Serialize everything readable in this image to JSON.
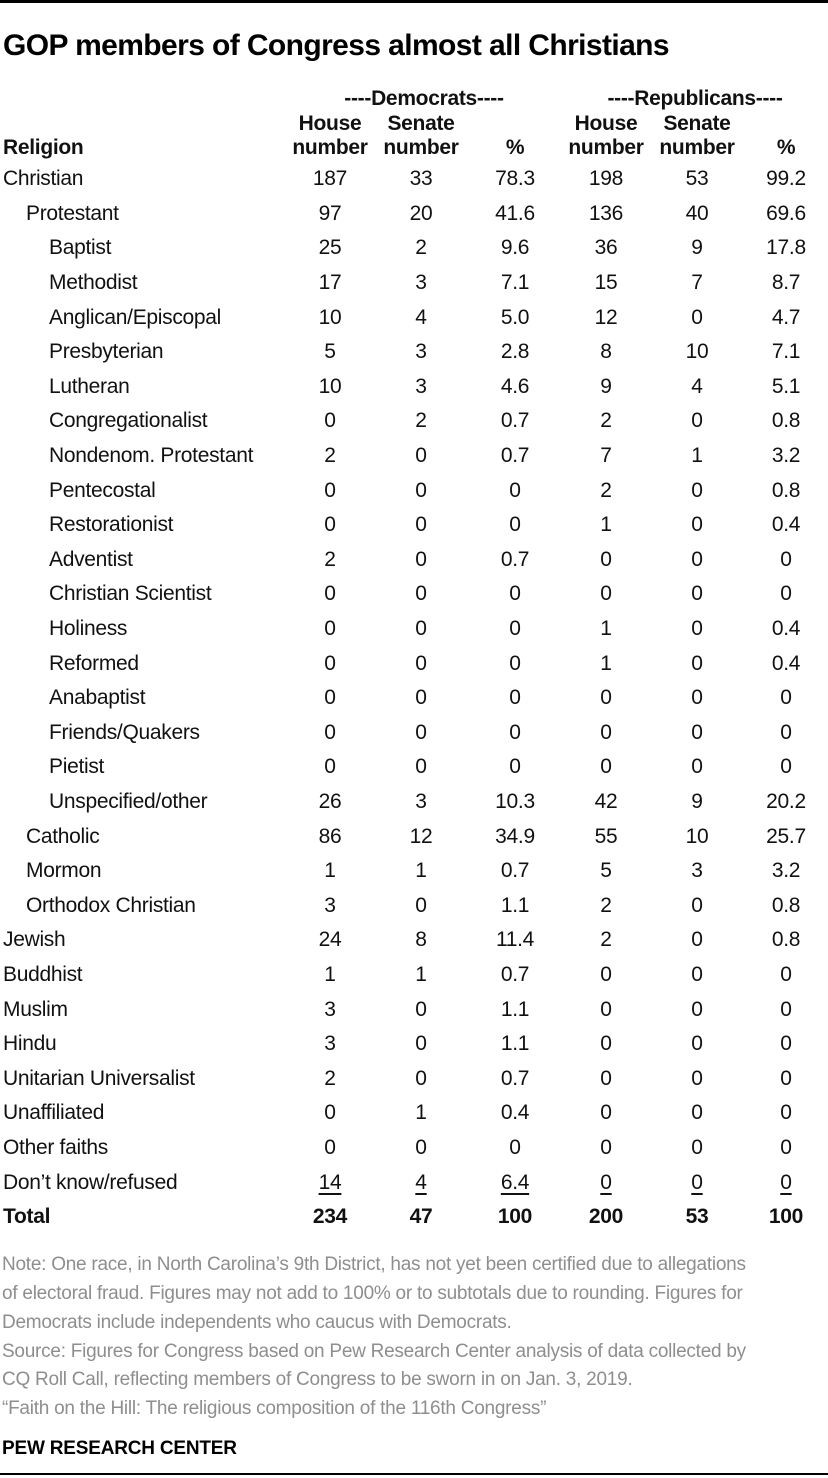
{
  "title": "GOP members of Congress almost all Christians",
  "colors": {
    "rule_black": "#000000",
    "note_gray": "#8e8e8e",
    "text_black": "#111111"
  },
  "chart_data": {
    "type": "table",
    "title": "GOP members of Congress almost all Christians",
    "row_header": "Religion",
    "group_headers": {
      "democrats": "----Democrats----",
      "republicans": "----Republicans----"
    },
    "col_headers": [
      {
        "line1": "House",
        "line2": "number"
      },
      {
        "line1": "Senate",
        "line2": "number"
      },
      {
        "line1": "",
        "line2": "%"
      },
      {
        "line1": "House",
        "line2": "number"
      },
      {
        "line1": "Senate",
        "line2": "number"
      },
      {
        "line1": "",
        "line2": "%"
      }
    ],
    "rows": [
      {
        "label": "Christian",
        "indent": 0,
        "style": "normal",
        "values": [
          "187",
          "33",
          "78.3",
          "198",
          "53",
          "99.2"
        ]
      },
      {
        "label": "Protestant",
        "indent": 1,
        "style": "normal",
        "values": [
          "97",
          "20",
          "41.6",
          "136",
          "40",
          "69.6"
        ]
      },
      {
        "label": "Baptist",
        "indent": 2,
        "style": "normal",
        "values": [
          "25",
          "2",
          "9.6",
          "36",
          "9",
          "17.8"
        ]
      },
      {
        "label": "Methodist",
        "indent": 2,
        "style": "normal",
        "values": [
          "17",
          "3",
          "7.1",
          "15",
          "7",
          "8.7"
        ]
      },
      {
        "label": "Anglican/Episcopal",
        "indent": 2,
        "style": "normal",
        "values": [
          "10",
          "4",
          "5.0",
          "12",
          "0",
          "4.7"
        ]
      },
      {
        "label": "Presbyterian",
        "indent": 2,
        "style": "normal",
        "values": [
          "5",
          "3",
          "2.8",
          "8",
          "10",
          "7.1"
        ]
      },
      {
        "label": "Lutheran",
        "indent": 2,
        "style": "normal",
        "values": [
          "10",
          "3",
          "4.6",
          "9",
          "4",
          "5.1"
        ]
      },
      {
        "label": "Congregationalist",
        "indent": 2,
        "style": "normal",
        "values": [
          "0",
          "2",
          "0.7",
          "2",
          "0",
          "0.8"
        ]
      },
      {
        "label": "Nondenom. Protestant",
        "indent": 2,
        "style": "normal",
        "values": [
          "2",
          "0",
          "0.7",
          "7",
          "1",
          "3.2"
        ]
      },
      {
        "label": "Pentecostal",
        "indent": 2,
        "style": "normal",
        "values": [
          "0",
          "0",
          "0",
          "2",
          "0",
          "0.8"
        ]
      },
      {
        "label": "Restorationist",
        "indent": 2,
        "style": "normal",
        "values": [
          "0",
          "0",
          "0",
          "1",
          "0",
          "0.4"
        ]
      },
      {
        "label": "Adventist",
        "indent": 2,
        "style": "normal",
        "values": [
          "2",
          "0",
          "0.7",
          "0",
          "0",
          "0"
        ]
      },
      {
        "label": "Christian Scientist",
        "indent": 2,
        "style": "normal",
        "values": [
          "0",
          "0",
          "0",
          "0",
          "0",
          "0"
        ]
      },
      {
        "label": "Holiness",
        "indent": 2,
        "style": "normal",
        "values": [
          "0",
          "0",
          "0",
          "1",
          "0",
          "0.4"
        ]
      },
      {
        "label": "Reformed",
        "indent": 2,
        "style": "normal",
        "values": [
          "0",
          "0",
          "0",
          "1",
          "0",
          "0.4"
        ]
      },
      {
        "label": "Anabaptist",
        "indent": 2,
        "style": "normal",
        "values": [
          "0",
          "0",
          "0",
          "0",
          "0",
          "0"
        ]
      },
      {
        "label": "Friends/Quakers",
        "indent": 2,
        "style": "normal",
        "values": [
          "0",
          "0",
          "0",
          "0",
          "0",
          "0"
        ]
      },
      {
        "label": "Pietist",
        "indent": 2,
        "style": "normal",
        "values": [
          "0",
          "0",
          "0",
          "0",
          "0",
          "0"
        ]
      },
      {
        "label": "Unspecified/other",
        "indent": 2,
        "style": "normal",
        "values": [
          "26",
          "3",
          "10.3",
          "42",
          "9",
          "20.2"
        ]
      },
      {
        "label": "Catholic",
        "indent": 1,
        "style": "normal",
        "values": [
          "86",
          "12",
          "34.9",
          "55",
          "10",
          "25.7"
        ]
      },
      {
        "label": "Mormon",
        "indent": 1,
        "style": "normal",
        "values": [
          "1",
          "1",
          "0.7",
          "5",
          "3",
          "3.2"
        ]
      },
      {
        "label": "Orthodox Christian",
        "indent": 1,
        "style": "normal",
        "values": [
          "3",
          "0",
          "1.1",
          "2",
          "0",
          "0.8"
        ]
      },
      {
        "label": "Jewish",
        "indent": 0,
        "style": "normal",
        "values": [
          "24",
          "8",
          "11.4",
          "2",
          "0",
          "0.8"
        ]
      },
      {
        "label": "Buddhist",
        "indent": 0,
        "style": "normal",
        "values": [
          "1",
          "1",
          "0.7",
          "0",
          "0",
          "0"
        ]
      },
      {
        "label": "Muslim",
        "indent": 0,
        "style": "normal",
        "values": [
          "3",
          "0",
          "1.1",
          "0",
          "0",
          "0"
        ]
      },
      {
        "label": "Hindu",
        "indent": 0,
        "style": "normal",
        "values": [
          "3",
          "0",
          "1.1",
          "0",
          "0",
          "0"
        ]
      },
      {
        "label": "Unitarian Universalist",
        "indent": 0,
        "style": "normal",
        "values": [
          "2",
          "0",
          "0.7",
          "0",
          "0",
          "0"
        ]
      },
      {
        "label": "Unaffiliated",
        "indent": 0,
        "style": "normal",
        "values": [
          "0",
          "1",
          "0.4",
          "0",
          "0",
          "0"
        ]
      },
      {
        "label": "Other faiths",
        "indent": 0,
        "style": "normal",
        "values": [
          "0",
          "0",
          "0",
          "0",
          "0",
          "0"
        ]
      },
      {
        "label": "Don’t know/refused",
        "indent": 0,
        "style": "underline",
        "values": [
          "14",
          "4",
          "6.4",
          "0",
          "0",
          "0"
        ]
      },
      {
        "label": "Total",
        "indent": 0,
        "style": "bold",
        "values": [
          "234",
          "47",
          "100",
          "200",
          "53",
          "100"
        ]
      }
    ]
  },
  "notes": {
    "note_lines": [
      "Note: One race, in North Carolina’s 9th District, has not yet been certified due to allegations",
      "of electoral fraud. Figures may not add to 100% or to subtotals due to rounding. Figures for",
      "Democrats include independents who caucus with Democrats."
    ],
    "source_lines": [
      "Source: Figures for Congress based on Pew Research Center analysis of data collected by",
      "CQ Roll Call, reflecting members of Congress to be sworn in on Jan. 3, 2019.",
      "“Faith on the Hill: The religious composition of the 116th Congress”"
    ]
  },
  "footer": {
    "brand": "PEW RESEARCH CENTER"
  }
}
